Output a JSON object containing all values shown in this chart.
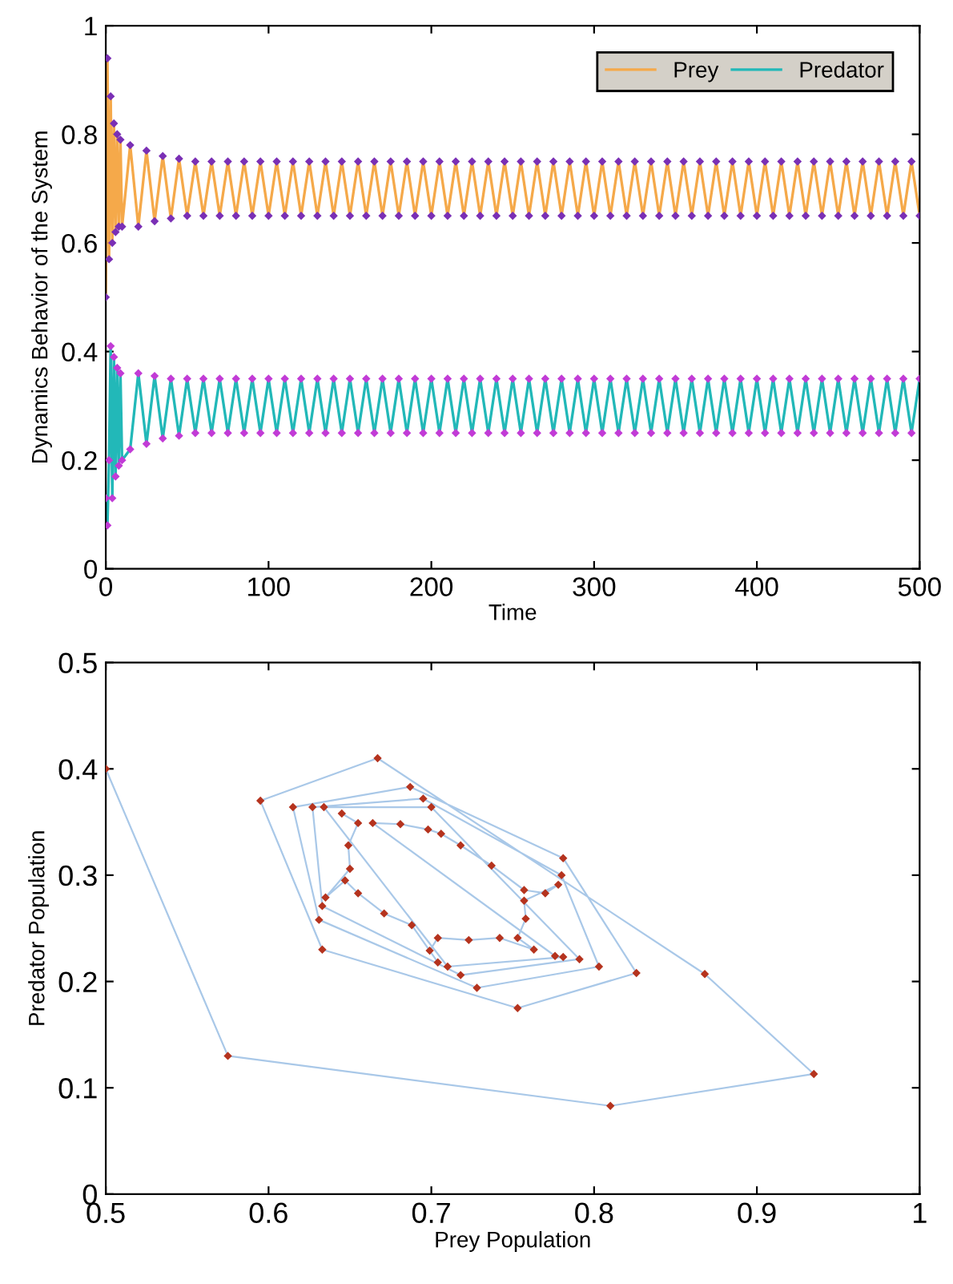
{
  "chart_data": [
    {
      "type": "line",
      "xlabel": "Time",
      "ylabel": "Dynamics Behavior of the System",
      "xlim": [
        0,
        500
      ],
      "ylim": [
        0,
        1
      ],
      "xticks": [
        0,
        100,
        200,
        300,
        400,
        500
      ],
      "yticks": [
        0,
        0.2,
        0.4,
        0.6,
        0.8,
        1
      ],
      "grid": false,
      "legend": "top right",
      "x": [
        0,
        1,
        2,
        3,
        4,
        5,
        6,
        7,
        8,
        9,
        10,
        15,
        20,
        25,
        30,
        35,
        40,
        45,
        50,
        55,
        60,
        65,
        70,
        75,
        80,
        85,
        90,
        95,
        100,
        105,
        110,
        115,
        120,
        125,
        130,
        135,
        140,
        145,
        150,
        155,
        160,
        165,
        170,
        175,
        180,
        185,
        190,
        195,
        200,
        205,
        210,
        215,
        220,
        225,
        230,
        235,
        240,
        245,
        250,
        255,
        260,
        265,
        270,
        275,
        280,
        285,
        290,
        295,
        300,
        305,
        310,
        315,
        320,
        325,
        330,
        335,
        340,
        345,
        350,
        355,
        360,
        365,
        370,
        375,
        380,
        385,
        390,
        395,
        400,
        405,
        410,
        415,
        420,
        425,
        430,
        435,
        440,
        445,
        450,
        455,
        460,
        465,
        470,
        475,
        480,
        485,
        490,
        495,
        500
      ],
      "series": [
        {
          "name": "Prey",
          "color": "#f5a94a",
          "values": [
            0.5,
            0.94,
            0.57,
            0.87,
            0.6,
            0.82,
            0.62,
            0.8,
            0.63,
            0.79,
            0.63,
            0.78,
            0.63,
            0.77,
            0.64,
            0.76,
            0.645,
            0.755,
            0.65,
            0.75,
            0.65,
            0.75,
            0.65,
            0.75,
            0.65,
            0.75,
            0.65,
            0.75,
            0.65,
            0.75,
            0.65,
            0.75,
            0.65,
            0.75,
            0.65,
            0.75,
            0.65,
            0.75,
            0.65,
            0.75,
            0.65,
            0.75,
            0.65,
            0.75,
            0.65,
            0.75,
            0.65,
            0.75,
            0.65,
            0.75,
            0.65,
            0.75,
            0.65,
            0.75,
            0.65,
            0.75,
            0.65,
            0.75,
            0.65,
            0.75,
            0.65,
            0.75,
            0.65,
            0.75,
            0.65,
            0.75,
            0.65,
            0.75,
            0.65,
            0.75,
            0.65,
            0.75,
            0.65,
            0.75,
            0.65,
            0.75,
            0.65,
            0.75,
            0.65,
            0.75,
            0.65,
            0.75,
            0.65,
            0.75,
            0.65,
            0.75,
            0.65,
            0.75,
            0.65,
            0.75,
            0.65,
            0.75,
            0.65,
            0.75,
            0.65,
            0.75,
            0.65,
            0.75,
            0.65,
            0.75,
            0.65,
            0.75,
            0.65,
            0.75,
            0.65,
            0.75,
            0.65,
            0.75,
            0.65
          ]
        },
        {
          "type": "scatter",
          "color": "#7a2fb5",
          "marker": "diamond",
          "values": [
            0.5,
            0.94,
            0.57,
            0.87,
            0.6,
            0.82,
            0.62,
            0.8,
            0.63,
            0.79,
            0.63,
            0.78,
            0.63,
            0.77,
            0.64,
            0.76,
            0.645,
            0.755,
            0.65,
            0.75,
            0.65,
            0.75,
            0.65,
            0.75,
            0.65,
            0.75,
            0.65,
            0.75,
            0.65,
            0.75,
            0.65,
            0.75,
            0.65,
            0.75,
            0.65,
            0.75,
            0.65,
            0.75,
            0.65,
            0.75,
            0.65,
            0.75,
            0.65,
            0.75,
            0.65,
            0.75,
            0.65,
            0.75,
            0.65,
            0.75,
            0.65,
            0.75,
            0.65,
            0.75,
            0.65,
            0.75,
            0.65,
            0.75,
            0.65,
            0.75,
            0.65,
            0.75,
            0.65,
            0.75,
            0.65,
            0.75,
            0.65,
            0.75,
            0.65,
            0.75,
            0.65,
            0.75,
            0.65,
            0.75,
            0.65,
            0.75,
            0.65,
            0.75,
            0.65,
            0.75,
            0.65,
            0.75,
            0.65,
            0.75,
            0.65,
            0.75,
            0.65,
            0.75,
            0.65,
            0.75,
            0.65,
            0.75,
            0.65,
            0.75,
            0.65,
            0.75,
            0.65,
            0.75,
            0.65,
            0.75,
            0.65,
            0.75,
            0.65,
            0.75,
            0.65,
            0.75,
            0.65,
            0.75,
            0.65
          ]
        },
        {
          "name": "Predator",
          "color": "#22b8b8",
          "values": [
            0.13,
            0.08,
            0.2,
            0.41,
            0.13,
            0.39,
            0.17,
            0.37,
            0.19,
            0.36,
            0.2,
            0.22,
            0.36,
            0.23,
            0.355,
            0.24,
            0.35,
            0.245,
            0.35,
            0.25,
            0.35,
            0.25,
            0.35,
            0.25,
            0.35,
            0.25,
            0.35,
            0.25,
            0.35,
            0.25,
            0.35,
            0.25,
            0.35,
            0.25,
            0.35,
            0.25,
            0.35,
            0.25,
            0.35,
            0.25,
            0.35,
            0.25,
            0.35,
            0.25,
            0.35,
            0.25,
            0.35,
            0.25,
            0.35,
            0.25,
            0.35,
            0.25,
            0.35,
            0.25,
            0.35,
            0.25,
            0.35,
            0.25,
            0.35,
            0.25,
            0.35,
            0.25,
            0.35,
            0.25,
            0.35,
            0.25,
            0.35,
            0.25,
            0.35,
            0.25,
            0.35,
            0.25,
            0.35,
            0.25,
            0.35,
            0.25,
            0.35,
            0.25,
            0.35,
            0.25,
            0.35,
            0.25,
            0.35,
            0.25,
            0.35,
            0.25,
            0.35,
            0.25,
            0.35,
            0.25,
            0.35,
            0.25,
            0.35,
            0.25,
            0.35,
            0.25,
            0.35,
            0.25,
            0.35,
            0.25,
            0.35,
            0.25,
            0.35,
            0.25,
            0.35,
            0.25,
            0.35,
            0.25,
            0.35
          ]
        },
        {
          "type": "scatter",
          "color": "#c23bd6",
          "marker": "diamond",
          "values": [
            0.13,
            0.08,
            0.2,
            0.41,
            0.13,
            0.39,
            0.17,
            0.37,
            0.19,
            0.36,
            0.2,
            0.22,
            0.36,
            0.23,
            0.355,
            0.24,
            0.35,
            0.245,
            0.35,
            0.25,
            0.35,
            0.25,
            0.35,
            0.25,
            0.35,
            0.25,
            0.35,
            0.25,
            0.35,
            0.25,
            0.35,
            0.25,
            0.35,
            0.25,
            0.35,
            0.25,
            0.35,
            0.25,
            0.35,
            0.25,
            0.35,
            0.25,
            0.35,
            0.25,
            0.35,
            0.25,
            0.35,
            0.25,
            0.35,
            0.25,
            0.35,
            0.25,
            0.35,
            0.25,
            0.35,
            0.25,
            0.35,
            0.25,
            0.35,
            0.25,
            0.35,
            0.25,
            0.35,
            0.25,
            0.35,
            0.25,
            0.35,
            0.25,
            0.35,
            0.25,
            0.35,
            0.25,
            0.35,
            0.25,
            0.35,
            0.25,
            0.35,
            0.25,
            0.35,
            0.25,
            0.35,
            0.25,
            0.35,
            0.25,
            0.35,
            0.25,
            0.35,
            0.25,
            0.35,
            0.25,
            0.35,
            0.25,
            0.35,
            0.25,
            0.35,
            0.25,
            0.35,
            0.25,
            0.35,
            0.25,
            0.35,
            0.25,
            0.35,
            0.25,
            0.35,
            0.25,
            0.35,
            0.25,
            0.35
          ]
        }
      ]
    },
    {
      "type": "line",
      "xlabel": "Prey Population",
      "ylabel": "Predator Population",
      "xlim": [
        0.5,
        1
      ],
      "ylim": [
        0,
        0.5
      ],
      "xticks": [
        0.5,
        0.6,
        0.7,
        0.8,
        0.9,
        1
      ],
      "yticks": [
        0,
        0.1,
        0.2,
        0.3,
        0.4,
        0.5
      ],
      "grid": false,
      "x": [
        0.5,
        0.575,
        0.81,
        0.935,
        0.868,
        0.667,
        0.595,
        0.633,
        0.753,
        0.826,
        0.781,
        0.687,
        0.615,
        0.631,
        0.728,
        0.803,
        0.78,
        0.695,
        0.627,
        0.633,
        0.718,
        0.791,
        0.7,
        0.634,
        0.71,
        0.781,
        0.776,
        0.664,
        0.681,
        0.698,
        0.706,
        0.718,
        0.737,
        0.757,
        0.77,
        0.778,
        0.757,
        0.758,
        0.753,
        0.763,
        0.742,
        0.723,
        0.704,
        0.699,
        0.704,
        0.688,
        0.671,
        0.655,
        0.647,
        0.635,
        0.65,
        0.649,
        0.655,
        0.645
      ],
      "series": [
        {
          "color": "#a9c8e8",
          "values": [
            0.4,
            0.13,
            0.083,
            0.113,
            0.207,
            0.41,
            0.37,
            0.23,
            0.175,
            0.208,
            0.316,
            0.383,
            0.364,
            0.258,
            0.194,
            0.214,
            0.3,
            0.372,
            0.364,
            0.271,
            0.206,
            0.221,
            0.364,
            0.364,
            0.214,
            0.223,
            0.224,
            0.349,
            0.348,
            0.343,
            0.339,
            0.328,
            0.309,
            0.286,
            0.283,
            0.291,
            0.276,
            0.259,
            0.241,
            0.23,
            0.241,
            0.239,
            0.241,
            0.229,
            0.218,
            0.253,
            0.264,
            0.283,
            0.295,
            0.279,
            0.306,
            0.328,
            0.349,
            0.358
          ]
        },
        {
          "type": "scatter",
          "color": "#b5331e",
          "marker": "diamond",
          "values": [
            0.4,
            0.13,
            0.083,
            0.113,
            0.207,
            0.41,
            0.37,
            0.23,
            0.175,
            0.208,
            0.316,
            0.383,
            0.364,
            0.258,
            0.194,
            0.214,
            0.3,
            0.372,
            0.364,
            0.271,
            0.206,
            0.221,
            0.364,
            0.364,
            0.214,
            0.223,
            0.224,
            0.349,
            0.348,
            0.343,
            0.339,
            0.328,
            0.309,
            0.286,
            0.283,
            0.291,
            0.276,
            0.259,
            0.241,
            0.23,
            0.241,
            0.239,
            0.241,
            0.229,
            0.218,
            0.253,
            0.264,
            0.283,
            0.295,
            0.279,
            0.306,
            0.328,
            0.349,
            0.358
          ]
        }
      ]
    }
  ]
}
